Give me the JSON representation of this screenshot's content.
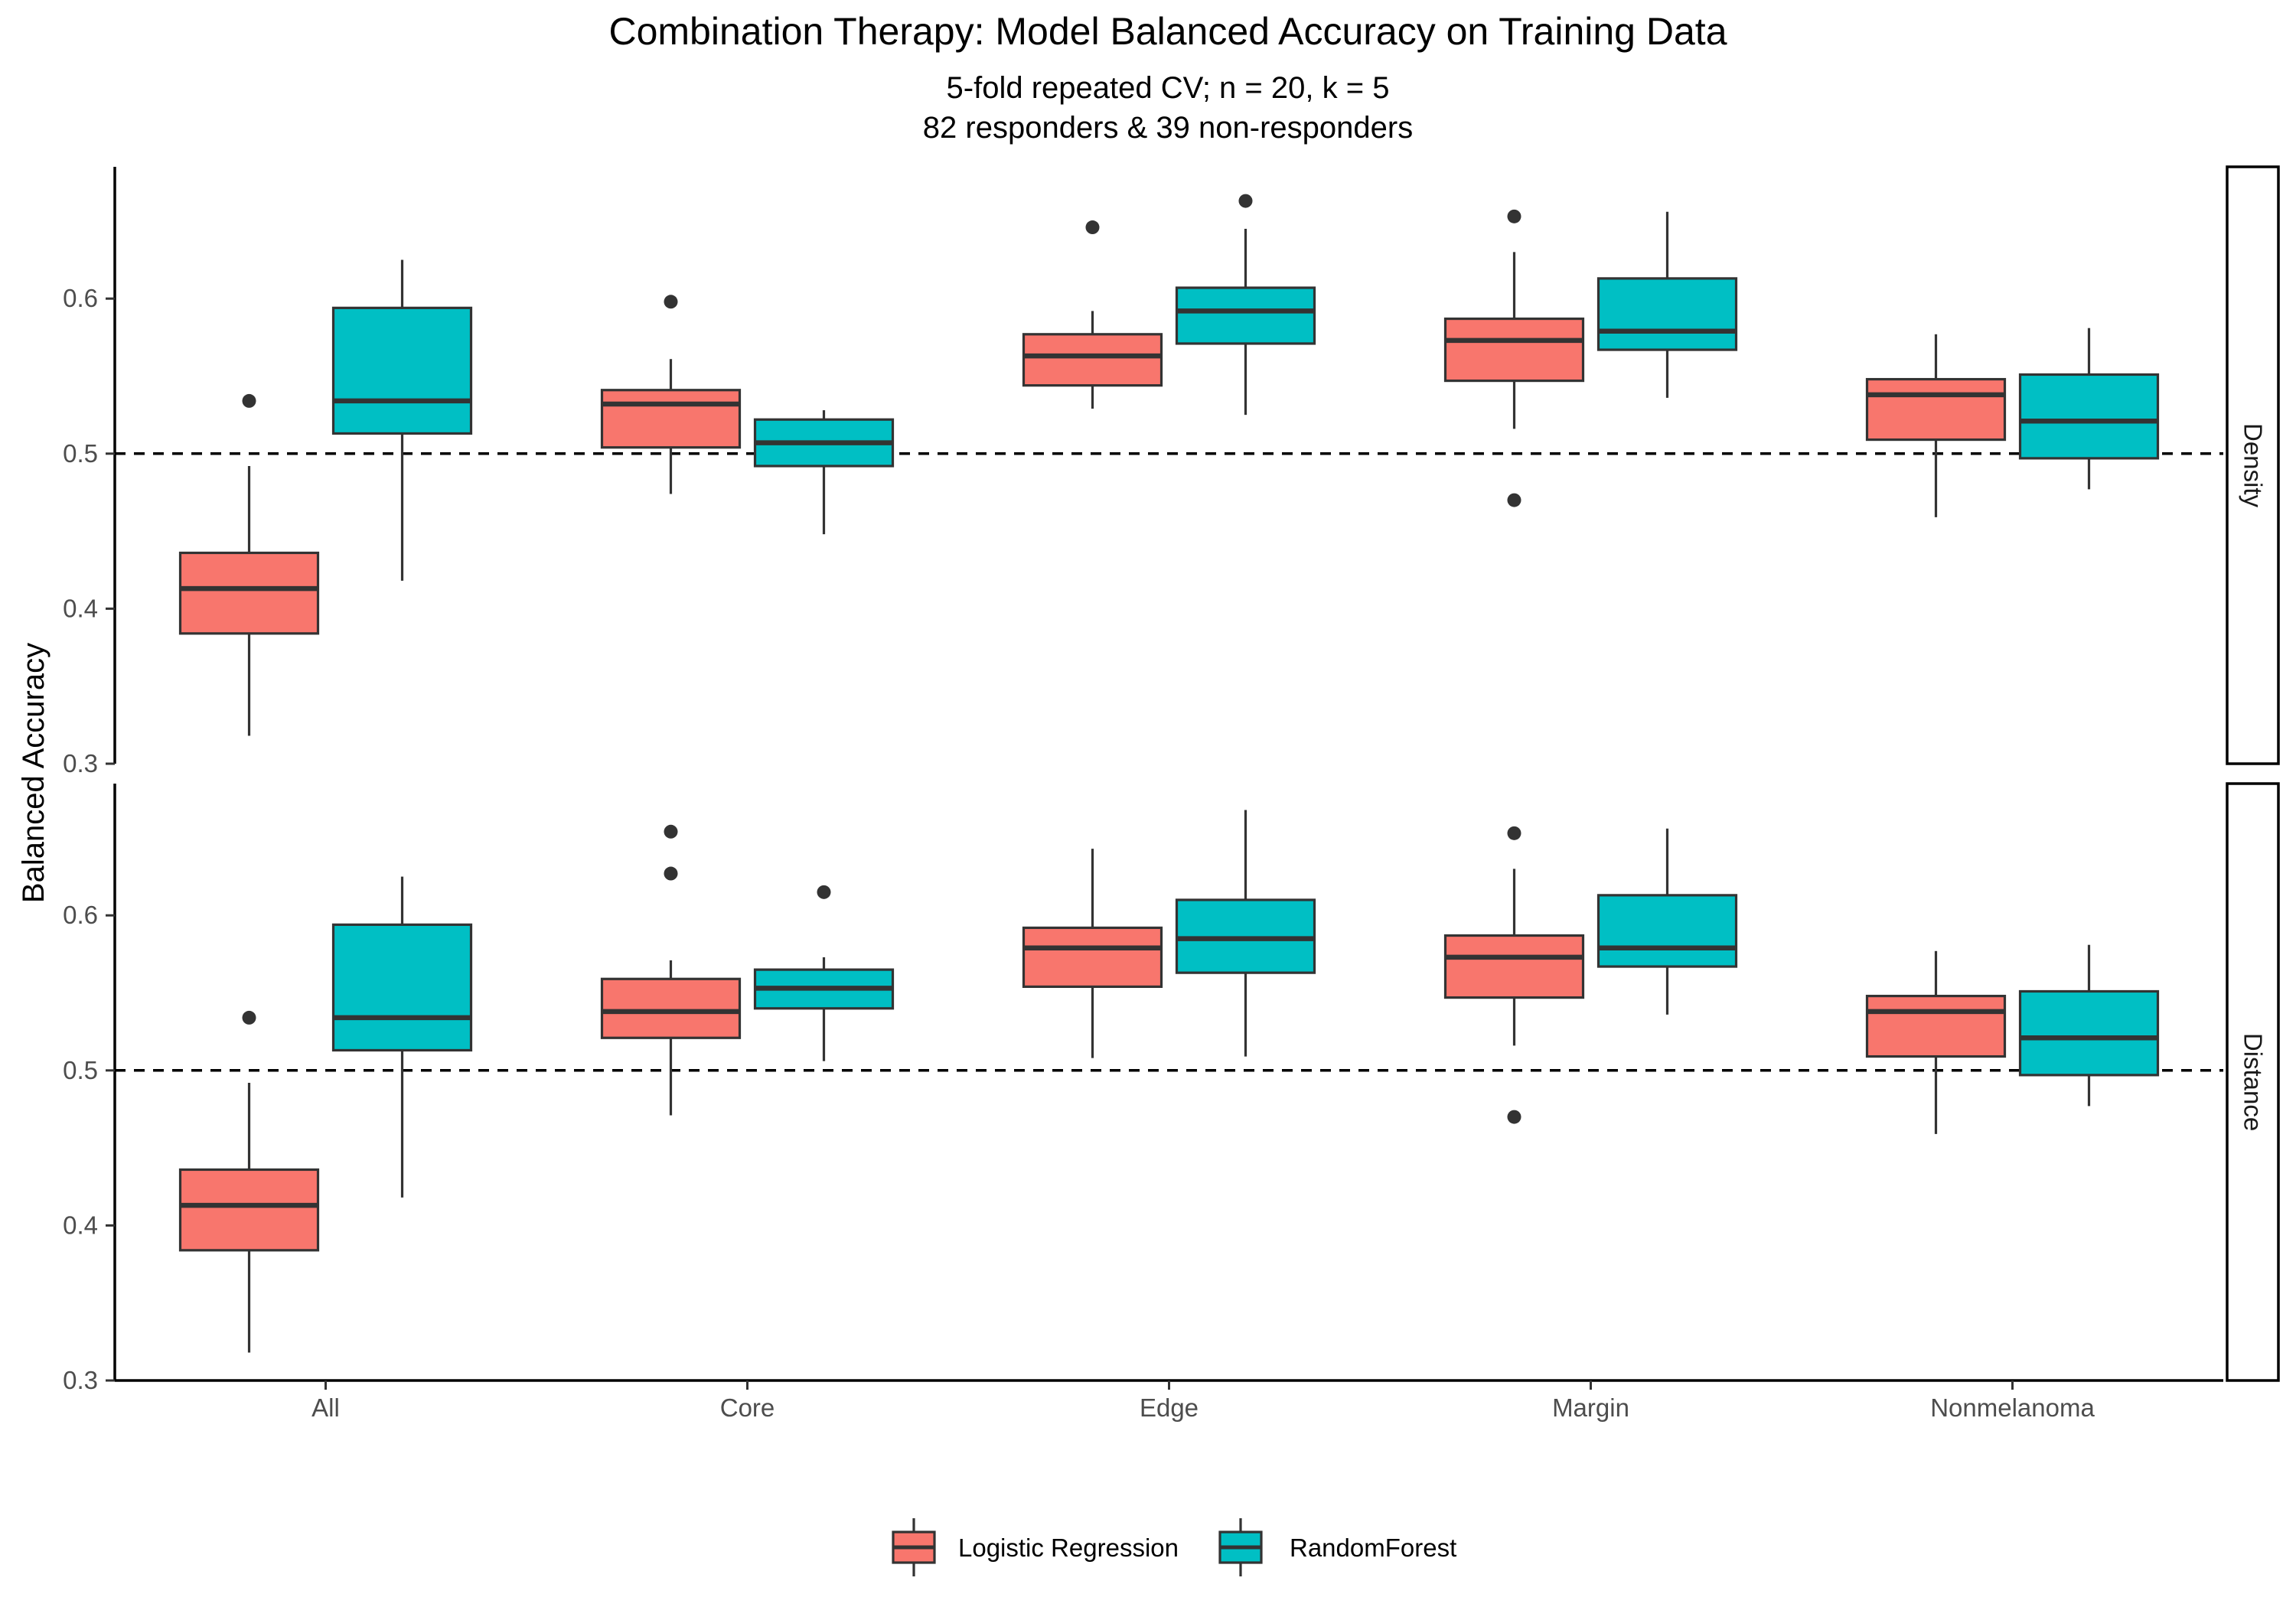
{
  "chart_data": {
    "type": "boxplot",
    "title": "Combination Therapy: Model Balanced Accuracy on Training Data",
    "subtitle_lines": [
      "5-fold repeated CV; n = 20, k = 5",
      "82 responders & 39 non-responders"
    ],
    "xlabel": "",
    "ylabel": "Balanced Accuracy",
    "ylim": [
      0.3,
      0.685
    ],
    "y_ticks": [
      0.3,
      0.4,
      0.5,
      0.6
    ],
    "y_tick_labels": [
      "0.3",
      "0.4",
      "0.5",
      "0.6"
    ],
    "reference_line": 0.5,
    "categories": [
      "All",
      "Core",
      "Edge",
      "Margin",
      "Nonmelanoma"
    ],
    "series": [
      {
        "name": "Logistic Regression",
        "color": "#F8766D"
      },
      {
        "name": "RandomForest",
        "color": "#00BFC4"
      }
    ],
    "legend_position": "bottom",
    "grid": false,
    "facets": [
      {
        "label": "Density",
        "boxes": {
          "Logistic Regression": [
            {
              "category": "All",
              "min": 0.318,
              "q1": 0.384,
              "median": 0.413,
              "q3": 0.436,
              "max": 0.492,
              "outliers": [
                0.534
              ]
            },
            {
              "category": "Core",
              "min": 0.474,
              "q1": 0.504,
              "median": 0.532,
              "q3": 0.541,
              "max": 0.561,
              "outliers": [
                0.598
              ]
            },
            {
              "category": "Edge",
              "min": 0.529,
              "q1": 0.544,
              "median": 0.563,
              "q3": 0.577,
              "max": 0.592,
              "outliers": [
                0.646
              ]
            },
            {
              "category": "Margin",
              "min": 0.516,
              "q1": 0.547,
              "median": 0.573,
              "q3": 0.587,
              "max": 0.63,
              "outliers": [
                0.653,
                0.47
              ]
            },
            {
              "category": "Nonmelanoma",
              "min": 0.459,
              "q1": 0.509,
              "median": 0.538,
              "q3": 0.548,
              "max": 0.577,
              "outliers": []
            }
          ],
          "RandomForest": [
            {
              "category": "All",
              "min": 0.418,
              "q1": 0.513,
              "median": 0.534,
              "q3": 0.594,
              "max": 0.625,
              "outliers": []
            },
            {
              "category": "Core",
              "min": 0.448,
              "q1": 0.492,
              "median": 0.507,
              "q3": 0.522,
              "max": 0.528,
              "outliers": []
            },
            {
              "category": "Edge",
              "min": 0.525,
              "q1": 0.571,
              "median": 0.592,
              "q3": 0.607,
              "max": 0.645,
              "outliers": [
                0.663
              ]
            },
            {
              "category": "Margin",
              "min": 0.536,
              "q1": 0.567,
              "median": 0.579,
              "q3": 0.613,
              "max": 0.656,
              "outliers": []
            },
            {
              "category": "Nonmelanoma",
              "min": 0.477,
              "q1": 0.497,
              "median": 0.521,
              "q3": 0.551,
              "max": 0.581,
              "outliers": []
            }
          ]
        }
      },
      {
        "label": "Distance",
        "boxes": {
          "Logistic Regression": [
            {
              "category": "All",
              "min": 0.318,
              "q1": 0.384,
              "median": 0.413,
              "q3": 0.436,
              "max": 0.492,
              "outliers": [
                0.534
              ]
            },
            {
              "category": "Core",
              "min": 0.471,
              "q1": 0.521,
              "median": 0.538,
              "q3": 0.559,
              "max": 0.571,
              "outliers": [
                0.654,
                0.627
              ]
            },
            {
              "category": "Edge",
              "min": 0.508,
              "q1": 0.554,
              "median": 0.579,
              "q3": 0.592,
              "max": 0.643,
              "outliers": []
            },
            {
              "category": "Margin",
              "min": 0.516,
              "q1": 0.547,
              "median": 0.573,
              "q3": 0.587,
              "max": 0.63,
              "outliers": [
                0.653,
                0.47
              ]
            },
            {
              "category": "Nonmelanoma",
              "min": 0.459,
              "q1": 0.509,
              "median": 0.538,
              "q3": 0.548,
              "max": 0.577,
              "outliers": []
            }
          ],
          "RandomForest": [
            {
              "category": "All",
              "min": 0.418,
              "q1": 0.513,
              "median": 0.534,
              "q3": 0.594,
              "max": 0.625,
              "outliers": []
            },
            {
              "category": "Core",
              "min": 0.506,
              "q1": 0.54,
              "median": 0.553,
              "q3": 0.565,
              "max": 0.573,
              "outliers": [
                0.615
              ]
            },
            {
              "category": "Edge",
              "min": 0.509,
              "q1": 0.563,
              "median": 0.585,
              "q3": 0.61,
              "max": 0.668,
              "outliers": []
            },
            {
              "category": "Margin",
              "min": 0.536,
              "q1": 0.567,
              "median": 0.579,
              "q3": 0.613,
              "max": 0.656,
              "outliers": []
            },
            {
              "category": "Nonmelanoma",
              "min": 0.477,
              "q1": 0.497,
              "median": 0.521,
              "q3": 0.551,
              "max": 0.581,
              "outliers": []
            }
          ]
        }
      }
    ]
  }
}
